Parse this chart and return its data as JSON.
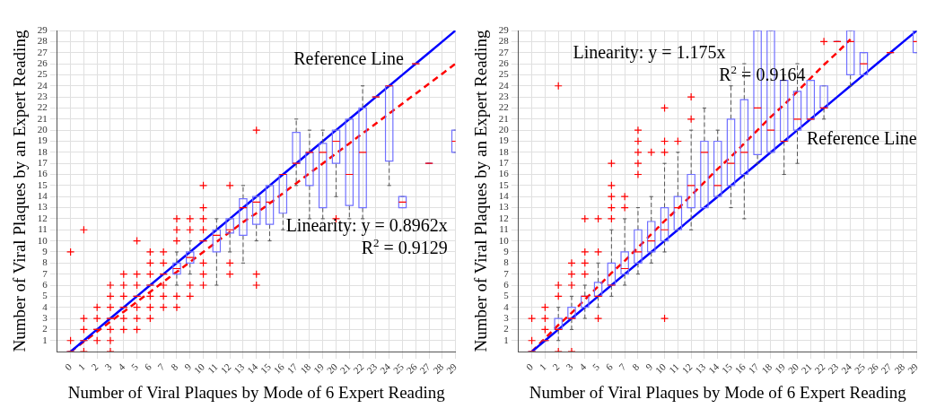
{
  "chart_data": [
    {
      "type": "box",
      "xlabel": "Number of Viral Plaques by Mode of 6 Expert Reading",
      "ylabel": "Number of Viral Plaques by an Expert Reading",
      "categories": [
        "0",
        "1",
        "2",
        "3",
        "4",
        "5",
        "6",
        "7",
        "8",
        "9",
        "10",
        "11",
        "12",
        "13",
        "14",
        "15",
        "16",
        "17",
        "18",
        "19",
        "20",
        "21",
        "22",
        "23",
        "24",
        "25",
        "26",
        "27",
        "28",
        "29"
      ],
      "ylim": [
        0,
        29
      ],
      "yticks": [
        1,
        2,
        3,
        4,
        5,
        6,
        7,
        8,
        9,
        10,
        11,
        12,
        13,
        14,
        15,
        16,
        17,
        18,
        19,
        20,
        21,
        22,
        23,
        24,
        25,
        26,
        27,
        28,
        29
      ],
      "grid": true,
      "annotations": [
        "Reference Line",
        "Linearity: y = 0.8962x",
        "R$^{2}$ = 0.9129"
      ],
      "series": [
        {
          "type": "box",
          "color": "#7070ff",
          "boxes": [
            {
              "low": 0,
              "q1": 0,
              "median": 0,
              "q3": 0,
              "high": 0,
              "outliers": [
                1,
                9
              ]
            },
            {
              "low": 1,
              "q1": 1,
              "median": 1,
              "q3": 1,
              "high": 1,
              "outliers": [
                0,
                2,
                3,
                11
              ]
            },
            {
              "low": 2,
              "q1": 2,
              "median": 2,
              "q3": 2,
              "high": 2,
              "outliers": [
                1,
                3,
                4
              ]
            },
            {
              "low": 3,
              "q1": 3,
              "median": 3,
              "q3": 3,
              "high": 3,
              "outliers": [
                0,
                1,
                2,
                4,
                5,
                6
              ]
            },
            {
              "low": 4,
              "q1": 4,
              "median": 4,
              "q3": 4,
              "high": 4,
              "outliers": [
                2,
                3,
                5,
                6,
                7
              ]
            },
            {
              "low": 5,
              "q1": 5,
              "median": 5,
              "q3": 5,
              "high": 5,
              "outliers": [
                2,
                3,
                4,
                6,
                7,
                10
              ]
            },
            {
              "low": 6,
              "q1": 6,
              "median": 6,
              "q3": 6,
              "high": 6,
              "outliers": [
                3,
                4,
                5,
                7,
                8,
                9
              ]
            },
            {
              "low": 7,
              "q1": 7,
              "median": 7,
              "q3": 7,
              "high": 7,
              "outliers": [
                4,
                5,
                6,
                8,
                9
              ]
            },
            {
              "low": 6,
              "q1": 7,
              "median": 7.5,
              "q3": 8,
              "high": 9,
              "outliers": [
                4,
                5,
                10,
                11,
                12
              ]
            },
            {
              "low": 7,
              "q1": 8,
              "median": 8.5,
              "q3": 9,
              "high": 10,
              "outliers": [
                5,
                6,
                11,
                12
              ]
            },
            {
              "low": 10,
              "q1": 10,
              "median": 10,
              "q3": 10,
              "high": 10,
              "outliers": [
                6,
                7,
                8,
                11,
                12,
                13,
                15
              ]
            },
            {
              "low": 6,
              "q1": 9,
              "median": 10.5,
              "q3": 11,
              "high": 12
            },
            {
              "low": 9,
              "q1": 10.7,
              "median": 11,
              "q3": 12,
              "high": 12,
              "outliers": [
                7,
                8,
                15
              ]
            },
            {
              "low": 8,
              "q1": 10.5,
              "median": 13,
              "q3": 13.8,
              "high": 15
            },
            {
              "low": 10,
              "q1": 11.5,
              "median": 13.5,
              "q3": 14,
              "high": 14,
              "outliers": [
                6,
                7,
                20
              ]
            },
            {
              "low": 10,
              "q1": 11.5,
              "median": 13.5,
              "q3": 15,
              "high": 15
            },
            {
              "low": 11,
              "q1": 12.5,
              "median": 16,
              "q3": 16,
              "high": 16
            },
            {
              "low": 15,
              "q1": 17,
              "median": 17,
              "q3": 19.8,
              "high": 21
            },
            {
              "low": 12,
              "q1": 15,
              "median": 18,
              "q3": 18,
              "high": 20
            },
            {
              "low": 12,
              "q1": 13,
              "median": 18,
              "q3": 18.8,
              "high": 20
            },
            {
              "low": 14,
              "q1": 17,
              "median": 19,
              "q3": 20,
              "high": 20,
              "outliers": [
                12
              ]
            },
            {
              "low": 12,
              "q1": 13.2,
              "median": 16,
              "q3": 21,
              "high": 21
            },
            {
              "low": 12,
              "q1": 13,
              "median": 18,
              "q3": 22,
              "high": 24
            },
            {
              "low": 23,
              "q1": 23,
              "median": 23,
              "q3": 23,
              "high": 23
            },
            {
              "low": 15,
              "q1": 17.2,
              "median": 24,
              "q3": 24,
              "high": 24
            },
            {
              "low": 13,
              "q1": 13,
              "median": 13.5,
              "q3": 14,
              "high": 14
            },
            {
              "low": 26,
              "q1": 26,
              "median": 26,
              "q3": 26,
              "high": 26
            },
            {
              "low": 17,
              "q1": 17,
              "median": 17,
              "q3": 17,
              "high": 17
            },
            null,
            {
              "low": 18,
              "q1": 18,
              "median": 19,
              "q3": 20,
              "high": 20
            }
          ]
        },
        {
          "type": "line",
          "color": "#0000ff",
          "line_style": "solid",
          "values": [
            0,
            1,
            2,
            3,
            4,
            5,
            6,
            7,
            8,
            9,
            10,
            11,
            12,
            13,
            14,
            15,
            16,
            17,
            18,
            19,
            20,
            21,
            22,
            23,
            24,
            25,
            26,
            27,
            28,
            29
          ]
        },
        {
          "type": "line",
          "color": "#ff0000",
          "line_style": "dashed",
          "values": [
            0,
            0.9,
            1.8,
            2.7,
            3.6,
            4.5,
            5.4,
            6.3,
            7.2,
            8.1,
            9.0,
            9.9,
            10.8,
            11.7,
            12.5,
            13.4,
            14.3,
            15.2,
            16.1,
            17.0,
            17.9,
            18.8,
            19.7,
            20.6,
            21.5,
            22.4,
            23.3,
            24.2,
            25.1,
            26.0
          ]
        }
      ]
    },
    {
      "type": "box",
      "xlabel": "Number of Viral Plaques by Mode of 6 Expert Reading",
      "ylabel": "Number of Viral Plaques by an Expert Reading",
      "categories": [
        "0",
        "1",
        "2",
        "3",
        "4",
        "5",
        "6",
        "7",
        "8",
        "9",
        "10",
        "11",
        "12",
        "13",
        "14",
        "15",
        "16",
        "17",
        "18",
        "19",
        "20",
        "21",
        "22",
        "23",
        "24",
        "25",
        "26",
        "27",
        "28",
        "29"
      ],
      "ylim": [
        0,
        29
      ],
      "yticks": [
        1,
        2,
        3,
        4,
        5,
        6,
        7,
        8,
        9,
        10,
        11,
        12,
        13,
        14,
        15,
        16,
        17,
        18,
        19,
        20,
        21,
        22,
        23,
        24,
        25,
        26,
        27,
        28,
        29
      ],
      "grid": true,
      "annotations": [
        "Linearity: y = 1.175x",
        "R$^{2}$ = 0.9164",
        "Reference Line"
      ],
      "series": [
        {
          "type": "box",
          "color": "#7070ff",
          "boxes": [
            {
              "low": 0,
              "q1": 0,
              "median": 0,
              "q3": 0,
              "high": 0,
              "outliers": [
                1,
                3
              ]
            },
            {
              "low": 1,
              "q1": 1,
              "median": 1,
              "q3": 1,
              "high": 1,
              "outliers": [
                2,
                3,
                4
              ]
            },
            {
              "low": 1,
              "q1": 2,
              "median": 2,
              "q3": 3,
              "high": 4,
              "outliers": [
                0,
                5,
                6,
                24
              ]
            },
            {
              "low": 2,
              "q1": 3,
              "median": 3,
              "q3": 4,
              "high": 5,
              "outliers": [
                0,
                6,
                7,
                8
              ]
            },
            {
              "low": 3,
              "q1": 4,
              "median": 5,
              "q3": 5,
              "high": 6,
              "outliers": [
                7,
                8,
                9,
                12
              ]
            },
            {
              "low": 4,
              "q1": 5,
              "median": 5,
              "q3": 6.25,
              "high": 8,
              "outliers": [
                3,
                9,
                12
              ]
            },
            {
              "low": 5,
              "q1": 6,
              "median": 6,
              "q3": 8,
              "high": 11,
              "outliers": [
                12,
                13,
                14,
                15,
                17
              ]
            },
            {
              "low": 6,
              "q1": 7,
              "median": 7.5,
              "q3": 9,
              "high": 12,
              "outliers": [
                13,
                14
              ]
            },
            {
              "low": 7,
              "q1": 8,
              "median": 9,
              "q3": 11,
              "high": 13,
              "outliers": [
                16,
                17,
                18,
                19,
                20
              ]
            },
            {
              "low": 8,
              "q1": 9,
              "median": 10,
              "q3": 11.75,
              "high": 14,
              "outliers": [
                18
              ]
            },
            {
              "low": 9,
              "q1": 10,
              "median": 11,
              "q3": 13,
              "high": 17,
              "outliers": [
                3,
                18,
                19,
                22
              ]
            },
            {
              "low": 11,
              "q1": 11,
              "median": 13,
              "q3": 14,
              "high": 18,
              "outliers": [
                19
              ]
            },
            {
              "low": 11,
              "q1": 13,
              "median": 15,
              "q3": 16,
              "high": 20,
              "outliers": [
                21,
                23
              ]
            },
            {
              "low": 13,
              "q1": 13,
              "median": 18,
              "q3": 19,
              "high": 22
            },
            {
              "low": 14,
              "q1": 14,
              "median": 15,
              "q3": 19,
              "high": 20
            },
            {
              "low": 13,
              "q1": 15,
              "median": 17,
              "q3": 21,
              "high": 24
            },
            {
              "low": 12,
              "q1": 16,
              "median": 18,
              "q3": 22.75,
              "high": 26
            },
            {
              "low": 17,
              "q1": 17.8,
              "median": 22,
              "q3": 29,
              "high": 29
            },
            {
              "low": 18,
              "q1": 18,
              "median": 20,
              "q3": 29,
              "high": 29
            },
            {
              "low": 16,
              "q1": 19,
              "median": 19,
              "q3": 24.5,
              "high": 25
            },
            {
              "low": 17,
              "q1": 20,
              "median": 21,
              "q3": 23.5,
              "high": 26
            },
            {
              "low": 21,
              "q1": 21,
              "median": 21,
              "q3": 24.5,
              "high": 24.5
            },
            {
              "low": 21,
              "q1": 22,
              "median": 22,
              "q3": 24,
              "high": 24,
              "outliers": [
                28
              ]
            },
            {
              "low": 28,
              "q1": 28,
              "median": 28,
              "q3": 28,
              "high": 28
            },
            {
              "low": 24,
              "q1": 25,
              "median": 28,
              "q3": 29,
              "high": 29
            },
            {
              "low": 25,
              "q1": 25,
              "median": 26,
              "q3": 27,
              "high": 27
            },
            null,
            {
              "low": 27,
              "q1": 27,
              "median": 27,
              "q3": 27,
              "high": 27
            },
            null,
            {
              "low": 27,
              "q1": 27,
              "median": 28,
              "q3": 29,
              "high": 29
            }
          ]
        },
        {
          "type": "line",
          "color": "#0000ff",
          "line_style": "solid",
          "values": [
            0,
            1,
            2,
            3,
            4,
            5,
            6,
            7,
            8,
            9,
            10,
            11,
            12,
            13,
            14,
            15,
            16,
            17,
            18,
            19,
            20,
            21,
            22,
            23,
            24,
            25,
            26,
            27,
            28,
            29
          ]
        },
        {
          "type": "line",
          "color": "#ff0000",
          "line_style": "dashed",
          "values": [
            0,
            1.2,
            2.4,
            3.5,
            4.7,
            5.9,
            7.1,
            8.2,
            9.4,
            10.6,
            11.8,
            12.9,
            14.1,
            15.3,
            16.5,
            17.6,
            18.8,
            20.0,
            21.2,
            22.3,
            23.5,
            24.7,
            25.9,
            27.0,
            28.2,
            null,
            null,
            null,
            null,
            null
          ]
        }
      ]
    }
  ]
}
